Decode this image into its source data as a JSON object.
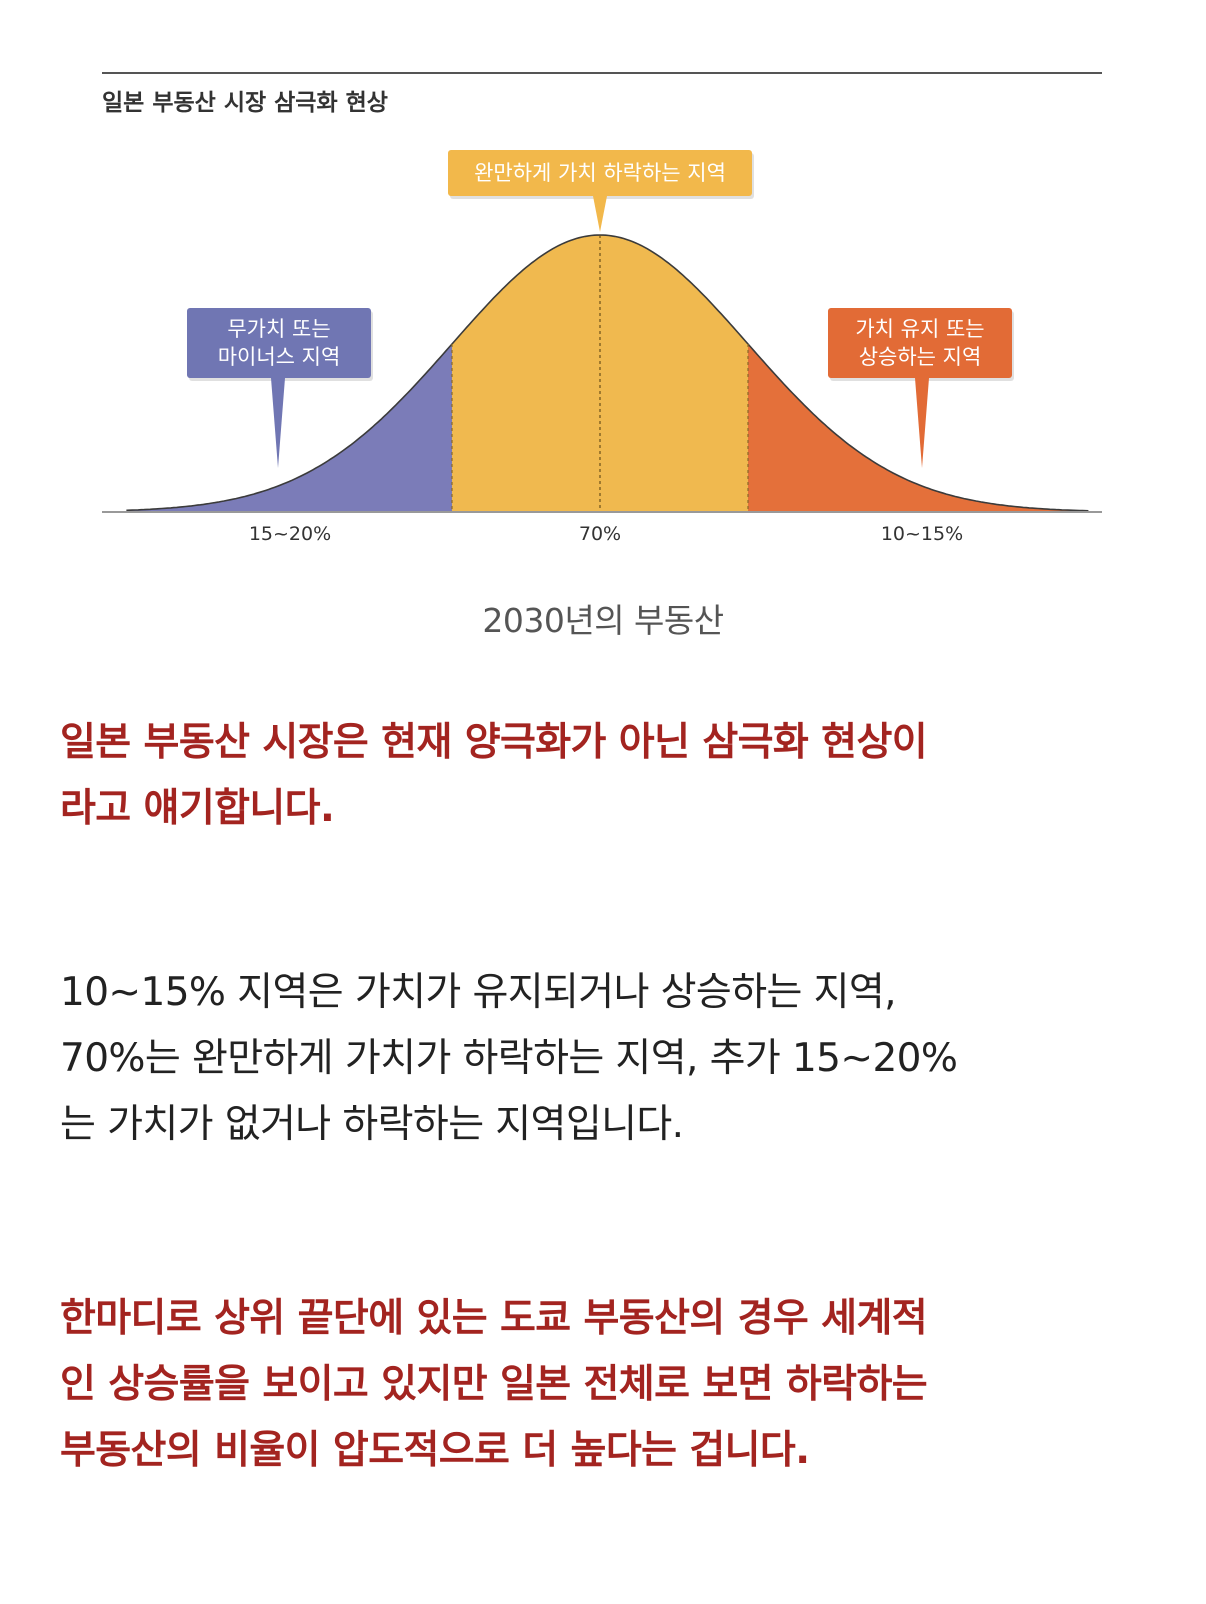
{
  "chart_data": {
    "type": "area",
    "title": "일본 부동산 시장 삼극화 현상",
    "distribution": "normal",
    "segments": [
      {
        "name": "무가치 또는 마이너스 지역",
        "label_lines": [
          "무가치 또는",
          "마이너스 지역"
        ],
        "share_label": "15~20%",
        "color": "#7b7cb8",
        "box_color": "#7076b3"
      },
      {
        "name": "완만하게 가치 하락하는 지역",
        "label_lines": [
          "완만하게 가치 하락하는 지역"
        ],
        "share_label": "70%",
        "color": "#f0b94f",
        "box_color": "#f2b84b"
      },
      {
        "name": "가치 유지 또는 상승하는 지역",
        "label_lines": [
          "가치 유지 또는",
          "상승하는 지역"
        ],
        "share_label": "10~15%",
        "color": "#e4703a",
        "box_color": "#e26b36"
      }
    ],
    "segment_bounds_sigma": [
      -1,
      1
    ],
    "sigma_units": 1,
    "x_range_sigma": [
      -3.2,
      3.3
    ],
    "grid": false
  },
  "caption": "2030년의 부동산",
  "paragraphs": [
    {
      "style": "red",
      "lines": [
        "일본 부동산 시장은 현재 양극화가 아닌 삼극화 현상이",
        "라고 얘기합니다."
      ]
    },
    {
      "style": "dark",
      "lines": [
        "10~15% 지역은 가치가 유지되거나 상승하는 지역,",
        "70%는 완만하게 가치가 하락하는 지역, 추가 15~20%",
        "는 가치가 없거나 하락하는 지역입니다."
      ]
    },
    {
      "style": "red",
      "lines": [
        "한마디로 상위 끝단에 있는 도쿄 부동산의 경우 세계적",
        "인 상승률을 보이고 있지만 일본 전체로 보면 하락하는",
        "부동산의 비율이 압도적으로 더 높다는 겁니다."
      ]
    }
  ]
}
